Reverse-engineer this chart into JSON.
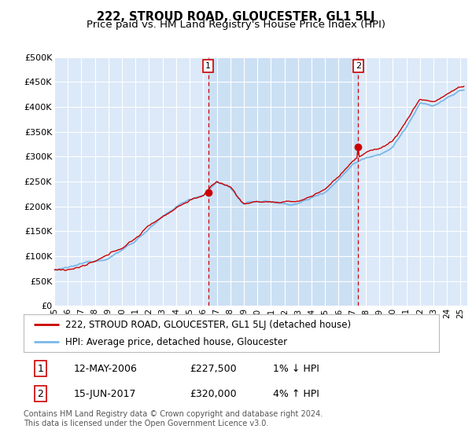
{
  "title": "222, STROUD ROAD, GLOUCESTER, GL1 5LJ",
  "subtitle": "Price paid vs. HM Land Registry's House Price Index (HPI)",
  "ylabel_ticks": [
    "£0",
    "£50K",
    "£100K",
    "£150K",
    "£200K",
    "£250K",
    "£300K",
    "£350K",
    "£400K",
    "£450K",
    "£500K"
  ],
  "ytick_vals": [
    0,
    50000,
    100000,
    150000,
    200000,
    250000,
    300000,
    350000,
    400000,
    450000,
    500000
  ],
  "ylim": [
    0,
    500000
  ],
  "xlim_start": 1995.0,
  "xlim_end": 2025.5,
  "plot_bg_color": "#dce9f8",
  "highlight_bg_color": "#c8daf0",
  "fig_bg_color": "#ffffff",
  "sale1_date": 2006.36,
  "sale1_price": 227500,
  "sale2_date": 2017.45,
  "sale2_price": 320000,
  "legend_line1": "222, STROUD ROAD, GLOUCESTER, GL1 5LJ (detached house)",
  "legend_line2": "HPI: Average price, detached house, Gloucester",
  "footer": "Contains HM Land Registry data © Crown copyright and database right 2024.\nThis data is licensed under the Open Government Licence v3.0.",
  "hpi_color": "#7ab8e8",
  "price_color": "#cc0000",
  "vline_color": "#cc0000",
  "grid_color": "#ffffff",
  "title_fontsize": 10.5,
  "subtitle_fontsize": 9.5,
  "tick_fontsize": 8,
  "legend_fontsize": 8.5,
  "footer_fontsize": 7
}
